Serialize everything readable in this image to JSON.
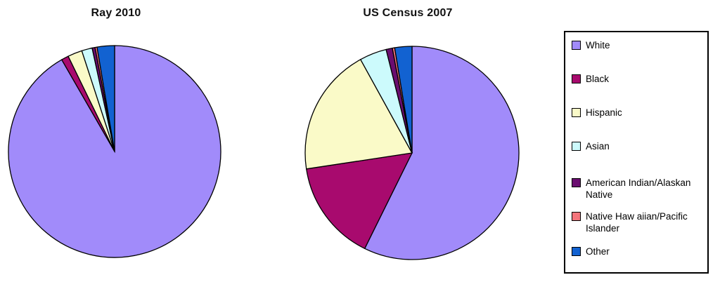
{
  "legend": {
    "items": [
      {
        "label": "White",
        "color": "#A18BFA"
      },
      {
        "label": "Black",
        "color": "#A80A6E"
      },
      {
        "label": "Hispanic",
        "color": "#FAFAC8"
      },
      {
        "label": "Asian",
        "color": "#CCFAFC"
      },
      {
        "label": "American Indian/Alaskan Native",
        "color": "#6A0D70"
      },
      {
        "label": "Native Haw aiian/Pacific Islander",
        "color": "#F4757C"
      },
      {
        "label": "Other",
        "color": "#1262D1"
      }
    ],
    "position": "right",
    "border_color": "#000000"
  },
  "chart_data": [
    {
      "type": "pie",
      "title": "Ray 2010",
      "categories": [
        "White",
        "Black",
        "Hispanic",
        "Asian",
        "American Indian/Alaskan Native",
        "Native Hawaiian/Pacific Islander",
        "Other"
      ],
      "values": [
        91.7,
        1.1,
        2.2,
        1.6,
        0.45,
        0.3,
        2.65
      ],
      "unit": "percent",
      "start_angle_deg": 0,
      "direction": "clockwise",
      "slice_border_color": "#000000"
    },
    {
      "type": "pie",
      "title": "US Census 2007",
      "categories": [
        "White",
        "Black",
        "Hispanic",
        "Asian",
        "American Indian/Alaskan Native",
        "Native Hawaiian/Pacific Islander",
        "Other"
      ],
      "values": [
        57.3,
        15.3,
        19.4,
        4.1,
        0.95,
        0.35,
        2.6
      ],
      "unit": "percent",
      "start_angle_deg": 0,
      "direction": "clockwise",
      "slice_border_color": "#000000"
    }
  ],
  "colors": {
    "background": "#FFFFFF",
    "stroke": "#000000",
    "title_text": "#111111",
    "legend_text": "#000000"
  }
}
